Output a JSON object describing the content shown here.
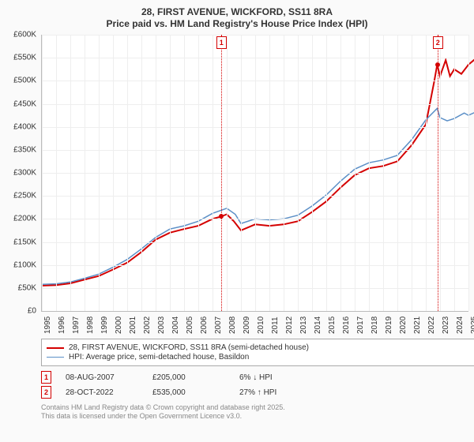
{
  "title_line1": "28, FIRST AVENUE, WICKFORD, SS11 8RA",
  "title_line2": "Price paid vs. HM Land Registry's House Price Index (HPI)",
  "chart": {
    "type": "line",
    "background_color": "#fafafa",
    "plot_background": "#ffffff",
    "grid_color": "#eeeeee",
    "axis_color": "#bbbbbb",
    "x_years": [
      1995,
      1996,
      1997,
      1998,
      1999,
      2000,
      2001,
      2002,
      2003,
      2004,
      2005,
      2006,
      2007,
      2008,
      2009,
      2010,
      2011,
      2012,
      2013,
      2014,
      2015,
      2016,
      2017,
      2018,
      2019,
      2020,
      2021,
      2022,
      2023,
      2024,
      2025
    ],
    "y_min": 0,
    "y_max": 600000,
    "y_step": 50000,
    "y_prefix": "£",
    "y_ticks": [
      "£0",
      "£50K",
      "£100K",
      "£150K",
      "£200K",
      "£250K",
      "£300K",
      "£350K",
      "£400K",
      "£450K",
      "£500K",
      "£550K",
      "£600K"
    ],
    "series": [
      {
        "name": "28, FIRST AVENUE, WICKFORD, SS11 8RA (semi-detached house)",
        "color": "#d40000",
        "width": 2,
        "data": [
          [
            1995,
            55000
          ],
          [
            1996,
            56000
          ],
          [
            1997,
            60000
          ],
          [
            1998,
            68000
          ],
          [
            1999,
            76000
          ],
          [
            2000,
            90000
          ],
          [
            2001,
            105000
          ],
          [
            2002,
            128000
          ],
          [
            2003,
            155000
          ],
          [
            2004,
            170000
          ],
          [
            2005,
            178000
          ],
          [
            2006,
            185000
          ],
          [
            2007,
            200000
          ],
          [
            2007.6,
            205000
          ],
          [
            2008,
            210000
          ],
          [
            2008.5,
            195000
          ],
          [
            2009,
            175000
          ],
          [
            2010,
            188000
          ],
          [
            2011,
            185000
          ],
          [
            2012,
            188000
          ],
          [
            2013,
            195000
          ],
          [
            2014,
            215000
          ],
          [
            2015,
            238000
          ],
          [
            2016,
            268000
          ],
          [
            2017,
            295000
          ],
          [
            2018,
            310000
          ],
          [
            2019,
            315000
          ],
          [
            2020,
            325000
          ],
          [
            2021,
            360000
          ],
          [
            2022,
            405000
          ],
          [
            2022.6,
            500000
          ],
          [
            2022.8,
            535000
          ],
          [
            2023,
            510000
          ],
          [
            2023.4,
            545000
          ],
          [
            2023.7,
            510000
          ],
          [
            2024,
            525000
          ],
          [
            2024.5,
            515000
          ],
          [
            2025,
            535000
          ],
          [
            2025.5,
            548000
          ]
        ]
      },
      {
        "name": "HPI: Average price, semi-detached house, Basildon",
        "color": "#5b8fc7",
        "width": 1.5,
        "data": [
          [
            1995,
            58000
          ],
          [
            1996,
            59000
          ],
          [
            1997,
            63000
          ],
          [
            1998,
            71000
          ],
          [
            1999,
            80000
          ],
          [
            2000,
            95000
          ],
          [
            2001,
            112000
          ],
          [
            2002,
            135000
          ],
          [
            2003,
            160000
          ],
          [
            2004,
            178000
          ],
          [
            2005,
            185000
          ],
          [
            2006,
            195000
          ],
          [
            2007,
            212000
          ],
          [
            2008,
            223000
          ],
          [
            2008.6,
            210000
          ],
          [
            2009,
            190000
          ],
          [
            2010,
            200000
          ],
          [
            2011,
            198000
          ],
          [
            2012,
            200000
          ],
          [
            2013,
            208000
          ],
          [
            2014,
            228000
          ],
          [
            2015,
            252000
          ],
          [
            2016,
            282000
          ],
          [
            2017,
            308000
          ],
          [
            2018,
            322000
          ],
          [
            2019,
            328000
          ],
          [
            2020,
            338000
          ],
          [
            2021,
            372000
          ],
          [
            2022,
            415000
          ],
          [
            2022.8,
            440000
          ],
          [
            2023,
            420000
          ],
          [
            2023.5,
            413000
          ],
          [
            2024,
            418000
          ],
          [
            2024.7,
            430000
          ],
          [
            2025,
            425000
          ],
          [
            2025.5,
            432000
          ]
        ]
      }
    ],
    "markers": [
      {
        "n": "1",
        "year": 2007.6,
        "price": 205000,
        "color": "#d40000"
      },
      {
        "n": "2",
        "year": 2022.82,
        "price": 535000,
        "color": "#d40000"
      }
    ]
  },
  "legend": {
    "rows": [
      {
        "color": "#d40000",
        "width": 2,
        "label": "28, FIRST AVENUE, WICKFORD, SS11 8RA (semi-detached house)"
      },
      {
        "color": "#5b8fc7",
        "width": 1.5,
        "label": "HPI: Average price, semi-detached house, Basildon"
      }
    ]
  },
  "events": [
    {
      "n": "1",
      "color": "#d40000",
      "date": "08-AUG-2007",
      "price": "£205,000",
      "delta": "6% ↓ HPI"
    },
    {
      "n": "2",
      "color": "#d40000",
      "date": "28-OCT-2022",
      "price": "£535,000",
      "delta": "27% ↑ HPI"
    }
  ],
  "footnote_l1": "Contains HM Land Registry data © Crown copyright and database right 2025.",
  "footnote_l2": "This data is licensed under the Open Government Licence v3.0."
}
